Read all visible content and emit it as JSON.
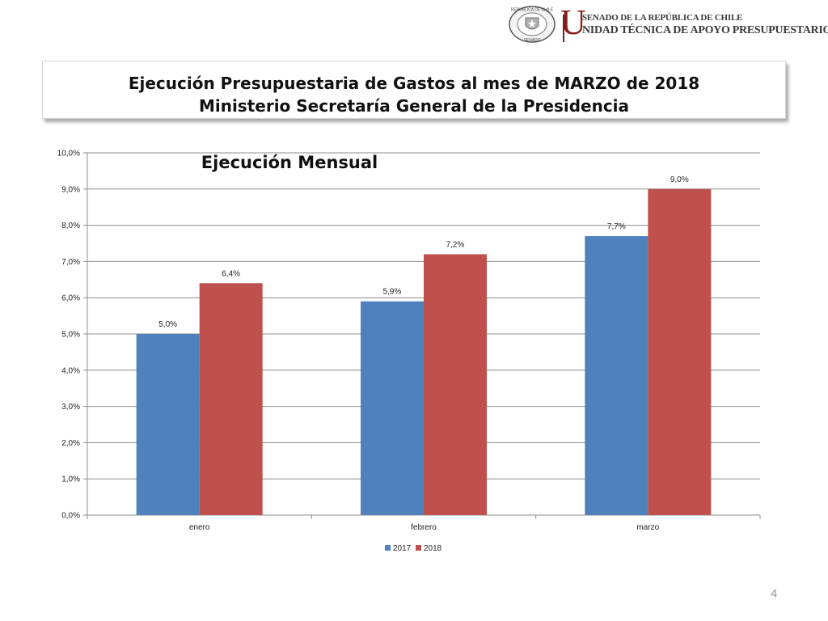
{
  "header": {
    "seal_text_top": "REPÚBLICA DE CHILE",
    "seal_text_bottom": "SENADO",
    "initial": "U",
    "line1": "SENADO DE LA REPÚBLICA DE CHILE",
    "line2": "NIDAD TÉCNICA DE APOYO PRESUPUESTARIO"
  },
  "title": {
    "line1": "Ejecución Presupuestaria de Gastos al mes de MARZO de 2018",
    "line2": "Ministerio Secretaría General de la Presidencia"
  },
  "slide_number": "4",
  "colors": {
    "series_2017": "#4f81bd",
    "series_2018": "#c0504d",
    "brand_red": "#8a1c1c"
  },
  "chart_data": {
    "type": "bar",
    "title": "Ejecución Mensual",
    "categories": [
      "enero",
      "febrero",
      "marzo"
    ],
    "series": [
      {
        "name": "2017",
        "values": [
          5.0,
          5.9,
          7.7
        ],
        "labels": [
          "5,0%",
          "5,9%",
          "7,7%"
        ]
      },
      {
        "name": "2018",
        "values": [
          6.4,
          7.2,
          9.0
        ],
        "labels": [
          "6,4%",
          "7,2%",
          "9,0%"
        ]
      }
    ],
    "yticks": [
      "0,0%",
      "1,0%",
      "2,0%",
      "3,0%",
      "4,0%",
      "5,0%",
      "6,0%",
      "7,0%",
      "8,0%",
      "9,0%",
      "10,0%"
    ],
    "ylim": [
      0,
      10
    ],
    "grid": true,
    "legend": "bottom"
  }
}
